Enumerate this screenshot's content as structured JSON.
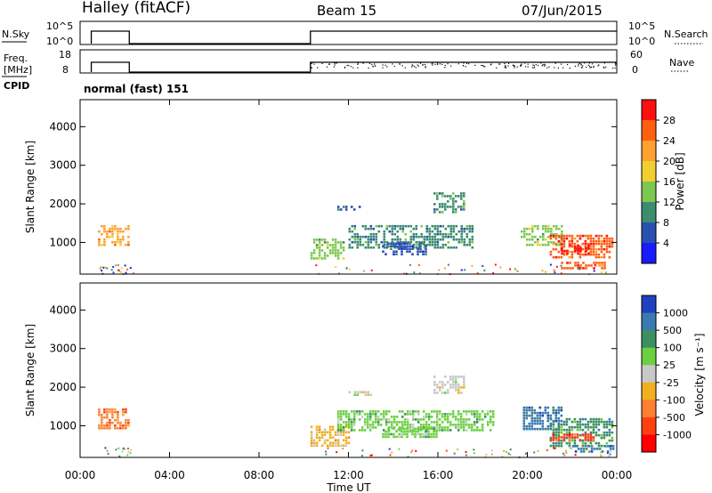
{
  "header": {
    "station": "Halley (fitACF)",
    "beam": "Beam 15",
    "date": "07/Jun/2015"
  },
  "aux_labels": {
    "nsky": "N.Sky",
    "nsky_ticks": [
      "10^5",
      "10^0"
    ],
    "nsearch": "N.Search",
    "nsearch_ticks": [
      "10^5",
      "10^0"
    ],
    "freq": "Freq.",
    "freq_unit": "[MHz]",
    "freq_ticks": [
      "18",
      "8"
    ],
    "nave": "Nave",
    "nave_ticks": [
      "60",
      "0"
    ],
    "cpid": "CPID",
    "cpid_value": "normal (fast) 151"
  },
  "axes": {
    "ylabel": "Slant Range [km]",
    "xlabel": "Time UT",
    "y_ticks": [
      "1000",
      "2000",
      "3000",
      "4000"
    ],
    "x_ticks": [
      "00:00",
      "04:00",
      "08:00",
      "12:00",
      "16:00",
      "20:00",
      "00:00"
    ]
  },
  "colorbars": {
    "power": {
      "label": "Power [dB]",
      "ticks": [
        "4",
        "8",
        "12",
        "16",
        "20",
        "24",
        "28"
      ],
      "colors": [
        "#1a1aff",
        "#2850b0",
        "#3c8c70",
        "#7cc850",
        "#f0d030",
        "#ffa030",
        "#ff6010",
        "#ff1010"
      ]
    },
    "velocity": {
      "label": "Velocity [m s⁻¹]",
      "ticks": [
        "1000",
        "500",
        "100",
        "25",
        "-25",
        "-100",
        "-500",
        "-1000"
      ],
      "colors": [
        "#2040c0",
        "#3a7ab0",
        "#3c9060",
        "#6ad040",
        "#c8c8c8",
        "#f0b020",
        "#ff8030",
        "#ff4010",
        "#ff0000"
      ]
    }
  },
  "chart_data": [
    {
      "type": "line",
      "title": "N.Sky / N.Search",
      "x_range_ut_hours": [
        0,
        24
      ],
      "segments_active_ut_hours": [
        [
          0.5,
          2.2
        ],
        [
          10.3,
          24
        ]
      ],
      "y_scale": "log",
      "ylim": [
        "10^0",
        "10^5"
      ]
    },
    {
      "type": "scatter",
      "title": "Freq. / Nave",
      "segments_active_ut_hours": [
        [
          0.5,
          2.2
        ],
        [
          10.3,
          24
        ]
      ],
      "freq_ylim_mhz": [
        8,
        18
      ],
      "nave_ylim": [
        0,
        60
      ]
    },
    {
      "type": "heatmap",
      "title": "Power",
      "x_range_ut_hours": [
        0,
        24
      ],
      "ylim_km": [
        180,
        4700
      ],
      "clim_db": [
        0,
        32
      ],
      "patches": [
        {
          "t0": 0.8,
          "t1": 2.2,
          "r0": 950,
          "r1": 1450,
          "level": 5
        },
        {
          "t0": 10.3,
          "t1": 11.8,
          "r0": 600,
          "r1": 1100,
          "level": 3
        },
        {
          "t0": 12.0,
          "t1": 17.5,
          "r0": 850,
          "r1": 1450,
          "level": 2
        },
        {
          "t0": 13.5,
          "t1": 15.5,
          "r0": 700,
          "r1": 1000,
          "level": 1
        },
        {
          "t0": 11.5,
          "t1": 12.5,
          "r0": 1850,
          "r1": 1950,
          "level": 1
        },
        {
          "t0": 15.8,
          "t1": 17.2,
          "r0": 1800,
          "r1": 2300,
          "level": 2
        },
        {
          "t0": 19.7,
          "t1": 21.5,
          "r0": 900,
          "r1": 1450,
          "level": 3
        },
        {
          "t0": 21.0,
          "t1": 23.8,
          "r0": 600,
          "r1": 1200,
          "level": 6
        },
        {
          "t0": 21.5,
          "t1": 22.8,
          "r0": 700,
          "r1": 950,
          "level": 7
        },
        {
          "t0": 21.5,
          "t1": 23.5,
          "r0": 300,
          "r1": 500,
          "level": 6
        }
      ]
    },
    {
      "type": "heatmap",
      "title": "Velocity",
      "x_range_ut_hours": [
        0,
        24
      ],
      "ylim_km": [
        180,
        4700
      ],
      "clim_ms": [
        -1000,
        1000
      ],
      "patches": [
        {
          "t0": 0.8,
          "t1": 2.2,
          "r0": 950,
          "r1": 1450,
          "level": 6
        },
        {
          "t0": 10.3,
          "t1": 12.0,
          "r0": 500,
          "r1": 1000,
          "level": 5
        },
        {
          "t0": 11.5,
          "t1": 18.5,
          "r0": 850,
          "r1": 1400,
          "level": 3
        },
        {
          "t0": 13.5,
          "t1": 16.0,
          "r0": 700,
          "r1": 950,
          "level": 3
        },
        {
          "t0": 12.0,
          "t1": 13.0,
          "r0": 1800,
          "r1": 1900,
          "level": 4
        },
        {
          "t0": 15.8,
          "t1": 17.2,
          "r0": 1850,
          "r1": 2300,
          "level": 4
        },
        {
          "t0": 19.8,
          "t1": 21.5,
          "r0": 900,
          "r1": 1500,
          "level": 1
        },
        {
          "t0": 21.0,
          "t1": 23.8,
          "r0": 500,
          "r1": 1200,
          "level": 2
        },
        {
          "t0": 21.0,
          "t1": 23.0,
          "r0": 600,
          "r1": 800,
          "level": 7
        },
        {
          "t0": 22.0,
          "t1": 23.8,
          "r0": 300,
          "r1": 500,
          "level": 1
        }
      ]
    }
  ]
}
